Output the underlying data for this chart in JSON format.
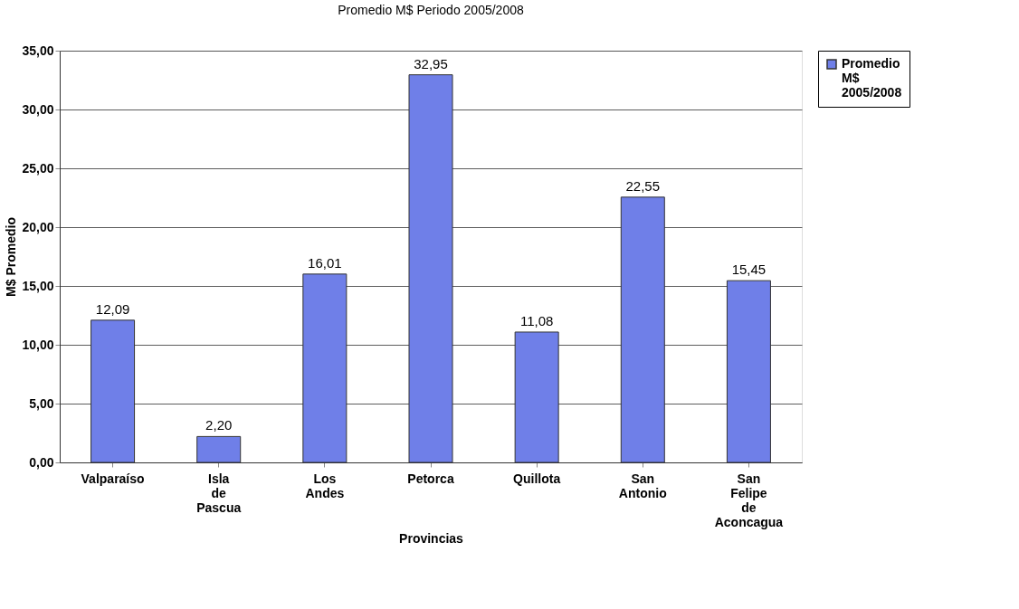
{
  "chart_data": {
    "type": "bar",
    "title": "Promedio M$ Periodo  2005/2008",
    "xlabel": "Provincias",
    "ylabel": "M$ Promedio",
    "categories": [
      "Valparaíso",
      "Isla de Pascua",
      "Los Andes",
      "Petorca",
      "Quillota",
      "San Antonio",
      "San Felipe de Aconcagua"
    ],
    "series": [
      {
        "name": "Promedio M$ 2005/2008",
        "color": "#6f7fe8",
        "values": [
          12.09,
          2.2,
          16.01,
          32.95,
          11.08,
          22.55,
          15.45
        ]
      }
    ],
    "value_labels": [
      "12,09",
      "2,20",
      "16,01",
      "32,95",
      "11,08",
      "22,55",
      "15,45"
    ],
    "ylim": [
      0,
      35
    ],
    "yticks": [
      {
        "value": 0,
        "label": "0,00"
      },
      {
        "value": 5,
        "label": "5,00"
      },
      {
        "value": 10,
        "label": "10,00"
      },
      {
        "value": 15,
        "label": "15,00"
      },
      {
        "value": 20,
        "label": "20,00"
      },
      {
        "value": 25,
        "label": "25,00"
      },
      {
        "value": 30,
        "label": "30,00"
      },
      {
        "value": 35,
        "label": "35,00"
      }
    ],
    "grid": "y",
    "legend": "right"
  }
}
